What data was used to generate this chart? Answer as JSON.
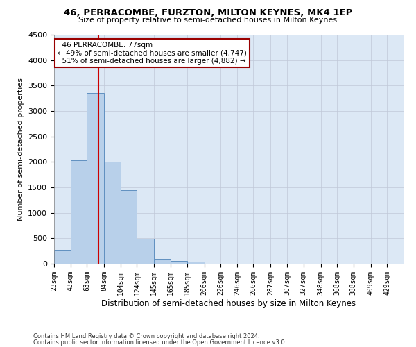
{
  "title": "46, PERRACOMBE, FURZTON, MILTON KEYNES, MK4 1EP",
  "subtitle": "Size of property relative to semi-detached houses in Milton Keynes",
  "xlabel": "Distribution of semi-detached houses by size in Milton Keynes",
  "ylabel": "Number of semi-detached properties",
  "footer_line1": "Contains HM Land Registry data © Crown copyright and database right 2024.",
  "footer_line2": "Contains public sector information licensed under the Open Government Licence v3.0.",
  "property_size": 77,
  "property_label": "46 PERRACOMBE: 77sqm",
  "pct_smaller": 49,
  "count_smaller": 4747,
  "pct_larger": 51,
  "count_larger": 4882,
  "bin_labels": [
    "23sqm",
    "43sqm",
    "63sqm",
    "84sqm",
    "104sqm",
    "124sqm",
    "145sqm",
    "165sqm",
    "185sqm",
    "206sqm",
    "226sqm",
    "246sqm",
    "266sqm",
    "287sqm",
    "307sqm",
    "327sqm",
    "348sqm",
    "368sqm",
    "388sqm",
    "409sqm",
    "429sqm"
  ],
  "bin_edges": [
    23,
    43,
    63,
    84,
    104,
    124,
    145,
    165,
    185,
    206,
    226,
    246,
    266,
    287,
    307,
    327,
    348,
    368,
    388,
    409,
    429
  ],
  "bar_heights": [
    270,
    2030,
    3360,
    2010,
    1450,
    490,
    95,
    55,
    40,
    0,
    0,
    0,
    0,
    0,
    0,
    0,
    0,
    0,
    0,
    0
  ],
  "bar_color": "#b8d0ea",
  "bar_edge_color": "#6090c0",
  "red_line_x": 77,
  "ylim": [
    0,
    4500
  ],
  "yticks": [
    0,
    500,
    1000,
    1500,
    2000,
    2500,
    3000,
    3500,
    4000,
    4500
  ],
  "ax_bg_color": "#dce8f5",
  "background_color": "#ffffff",
  "grid_color": "#c0c8d8",
  "annotation_box_edge_color": "#990000"
}
